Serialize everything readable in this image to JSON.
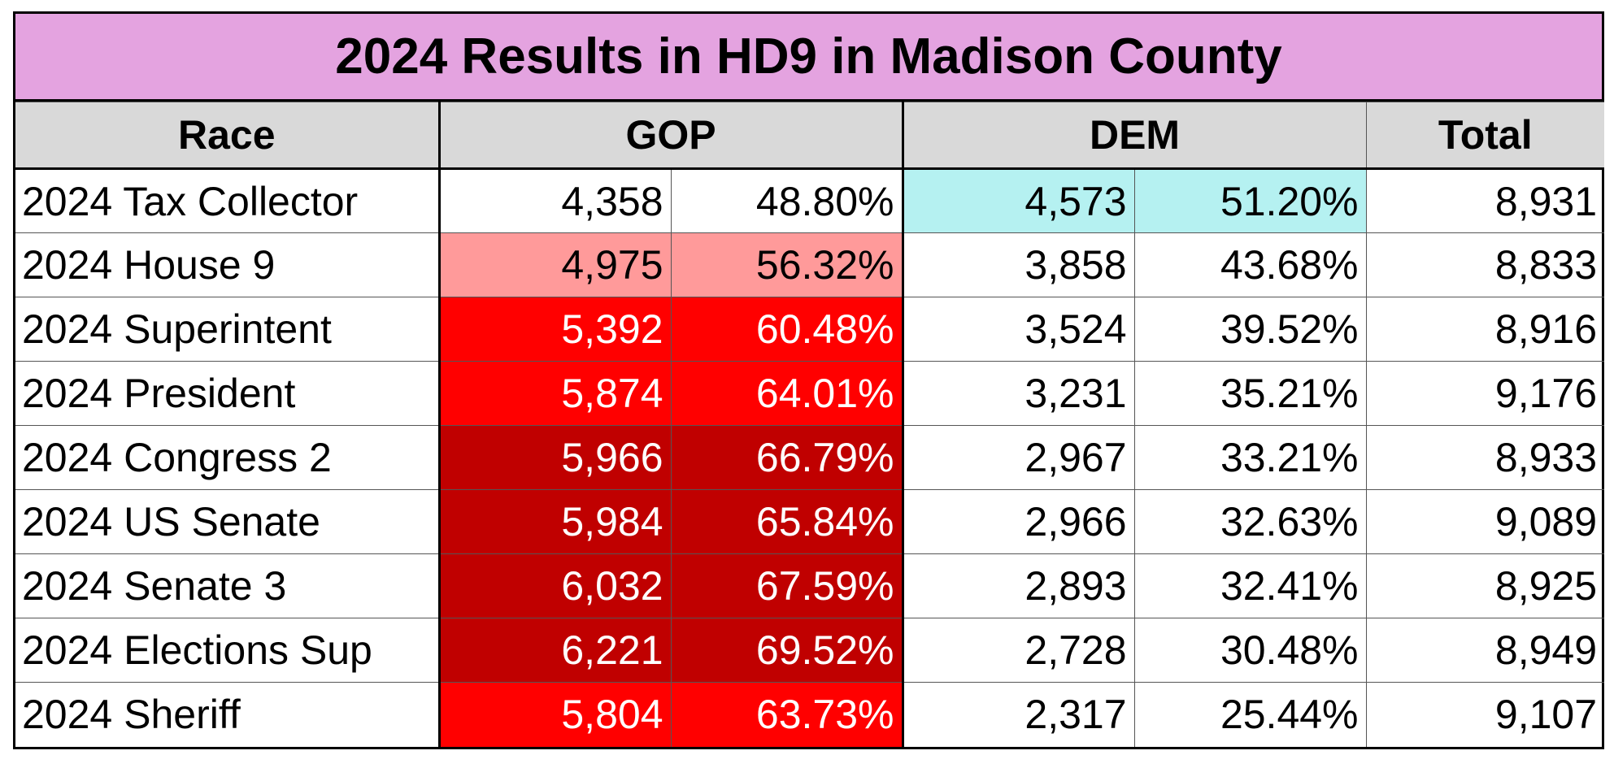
{
  "title": "2024 Results in HD9 in Madison County",
  "headers": {
    "race": "Race",
    "gop": "GOP",
    "dem": "DEM",
    "total": "Total"
  },
  "colors": {
    "title_bg": "#e4a3e0",
    "header_bg": "#d9d9d9",
    "dem_light": "#b5f1f1",
    "gop_light": "#ff9a9a",
    "gop_medium": "#ff0000",
    "gop_dark": "#c00000"
  },
  "rows": [
    {
      "race": "2024 Tax Collector",
      "gop_votes": "4,358",
      "gop_pct": "48.80%",
      "dem_votes": "4,573",
      "dem_pct": "51.20%",
      "total": "8,931",
      "shade": "dem_light"
    },
    {
      "race": "2024 House 9",
      "gop_votes": "4,975",
      "gop_pct": "56.32%",
      "dem_votes": "3,858",
      "dem_pct": "43.68%",
      "total": "8,833",
      "shade": "gop_light"
    },
    {
      "race": "2024 Superintent",
      "gop_votes": "5,392",
      "gop_pct": "60.48%",
      "dem_votes": "3,524",
      "dem_pct": "39.52%",
      "total": "8,916",
      "shade": "gop_medium"
    },
    {
      "race": "2024 President",
      "gop_votes": "5,874",
      "gop_pct": "64.01%",
      "dem_votes": "3,231",
      "dem_pct": "35.21%",
      "total": "9,176",
      "shade": "gop_medium"
    },
    {
      "race": "2024 Congress 2",
      "gop_votes": "5,966",
      "gop_pct": "66.79%",
      "dem_votes": "2,967",
      "dem_pct": "33.21%",
      "total": "8,933",
      "shade": "gop_dark"
    },
    {
      "race": "2024 US Senate",
      "gop_votes": "5,984",
      "gop_pct": "65.84%",
      "dem_votes": "2,966",
      "dem_pct": "32.63%",
      "total": "9,089",
      "shade": "gop_dark"
    },
    {
      "race": "2024 Senate 3",
      "gop_votes": "6,032",
      "gop_pct": "67.59%",
      "dem_votes": "2,893",
      "dem_pct": "32.41%",
      "total": "8,925",
      "shade": "gop_dark"
    },
    {
      "race": "2024 Elections Sup",
      "gop_votes": "6,221",
      "gop_pct": "69.52%",
      "dem_votes": "2,728",
      "dem_pct": "30.48%",
      "total": "8,949",
      "shade": "gop_dark"
    },
    {
      "race": "2024 Sheriff",
      "gop_votes": "5,804",
      "gop_pct": "63.73%",
      "dem_votes": "2,317",
      "dem_pct": "25.44%",
      "total": "9,107",
      "shade": "gop_medium"
    }
  ]
}
